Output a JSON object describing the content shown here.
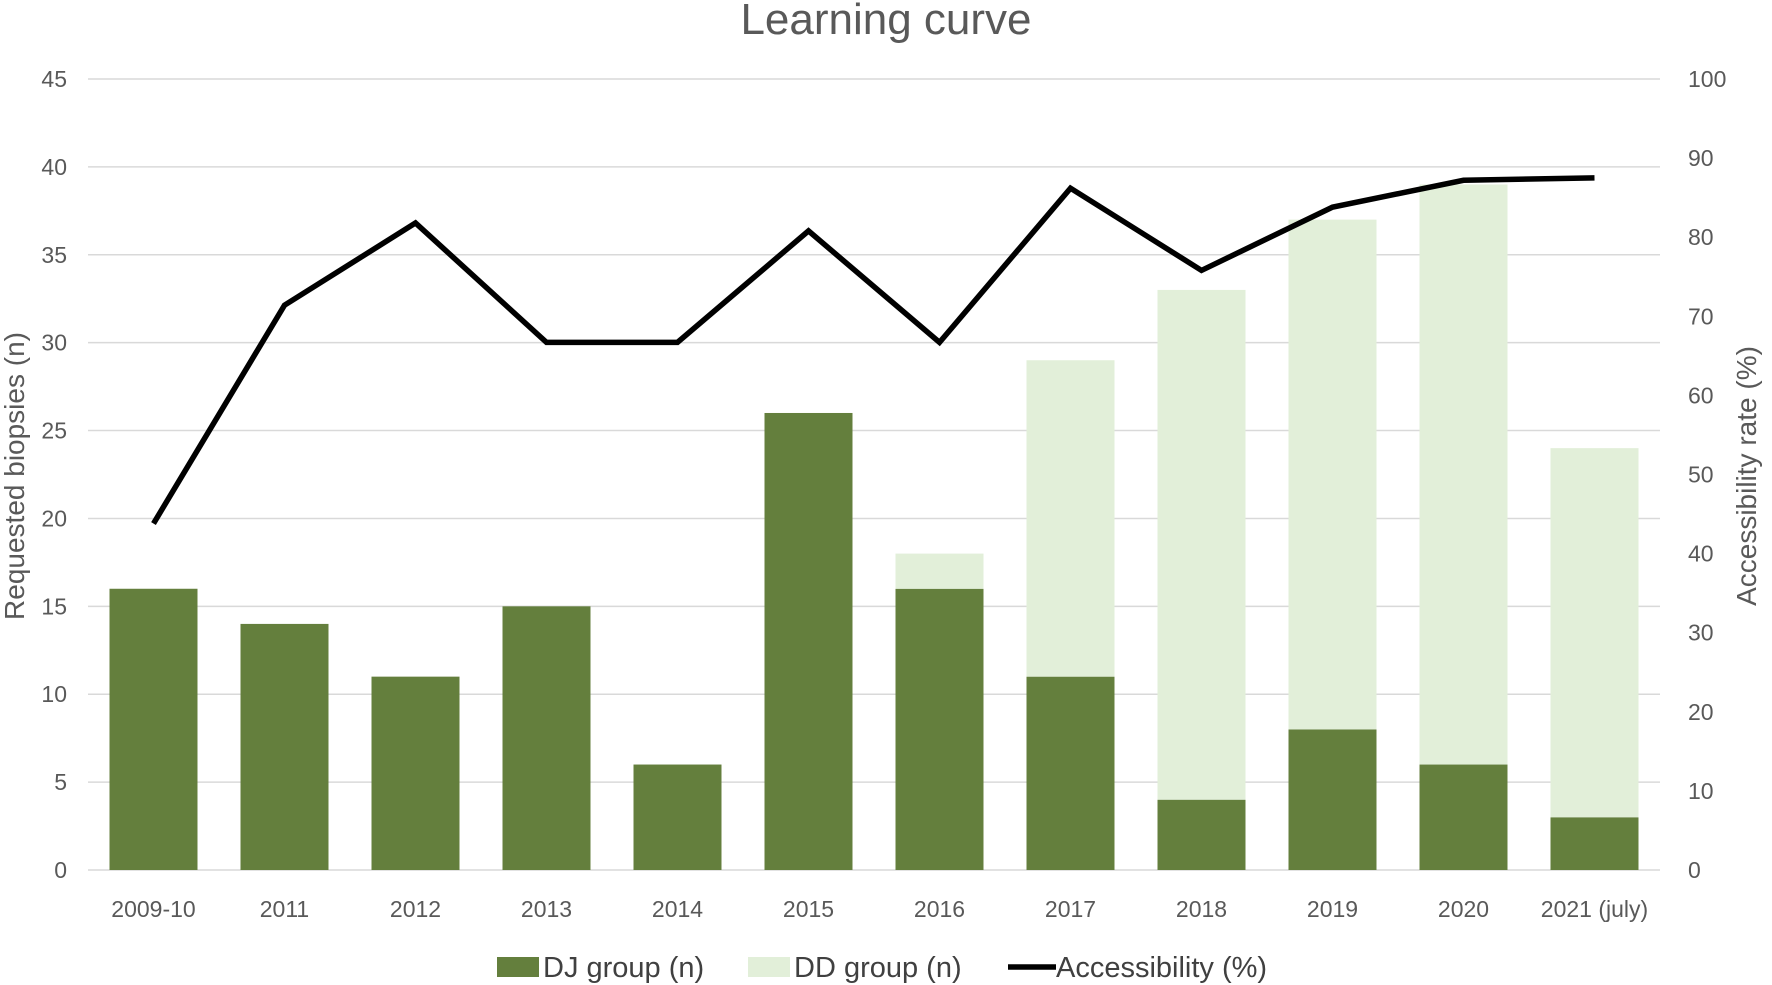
{
  "chart_data": {
    "type": "bar",
    "stacked": true,
    "title": "Learning curve",
    "categories": [
      "2009-10",
      "2011",
      "2012",
      "2013",
      "2014",
      "2015",
      "2016",
      "2017",
      "2018",
      "2019",
      "2020",
      "2021 (july)"
    ],
    "ylabel": "Requested biopsies (n)",
    "y2label": "Accessibility rate (%)",
    "ylim": [
      0,
      45
    ],
    "yticks": [
      "0",
      "5",
      "10",
      "15",
      "20",
      "25",
      "30",
      "35",
      "40",
      "45"
    ],
    "y2lim": [
      0,
      100
    ],
    "y2ticks": [
      "0",
      "10",
      "20",
      "30",
      "40",
      "50",
      "60",
      "70",
      "80",
      "90",
      "100"
    ],
    "grid": true,
    "legend_position": "bottom",
    "series": [
      {
        "name": "DJ group (n)",
        "type": "bar",
        "axis": "left",
        "color": "#647f3d",
        "values": [
          16,
          14,
          11,
          15,
          6,
          26,
          16,
          11,
          4,
          8,
          6,
          3
        ]
      },
      {
        "name": "DD group (n)",
        "type": "bar",
        "axis": "left",
        "color": "#e2efd9",
        "values": [
          0,
          0,
          0,
          0,
          0,
          0,
          2,
          18,
          29,
          29,
          33,
          21
        ]
      },
      {
        "name": "Accessibility (%)",
        "type": "line",
        "axis": "right",
        "color": "#000000",
        "values": [
          43.8,
          71.4,
          81.8,
          66.7,
          66.7,
          80.8,
          66.7,
          86.2,
          75.8,
          83.8,
          87.2,
          87.5
        ]
      }
    ]
  }
}
